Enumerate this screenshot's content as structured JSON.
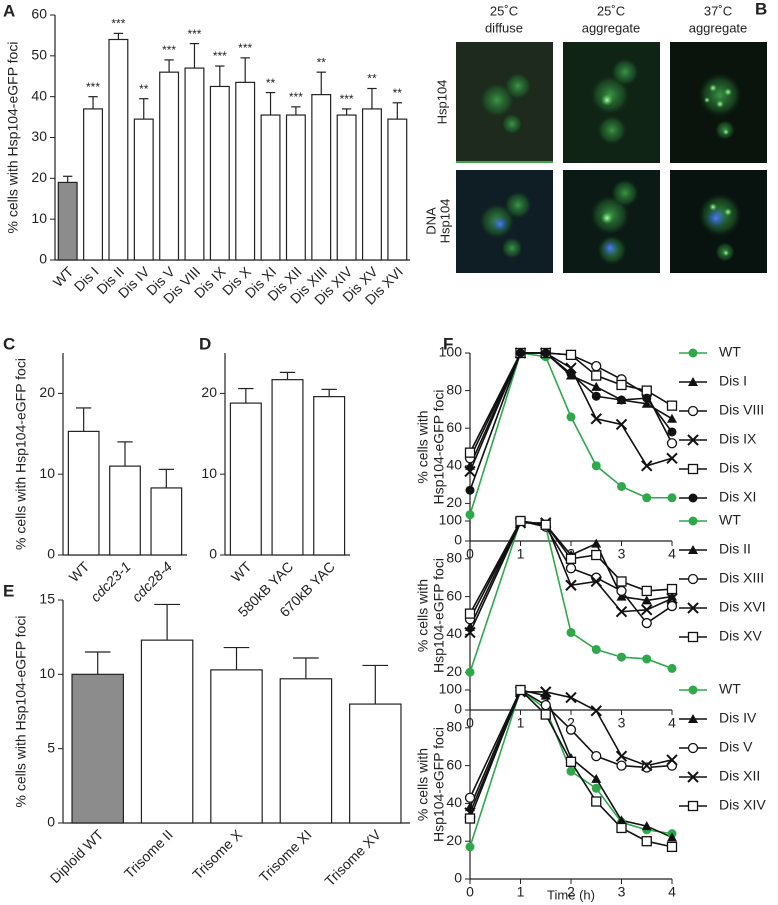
{
  "chart_data": [
    {
      "type": "bar",
      "label": "A",
      "ylabel": "% cells with Hsp104-eGFP foci",
      "categories": [
        "WT",
        "Dis I",
        "Dis II",
        "Dis IV",
        "Dis V",
        "Dis VIII",
        "Dis IX",
        "Dis X",
        "Dis XI",
        "Dis XII",
        "Dis XIII",
        "Dis XIV",
        "Dis XV",
        "Dis XVI"
      ],
      "values": [
        19,
        37,
        54,
        34.5,
        46,
        47,
        42.5,
        43.5,
        35.5,
        35.5,
        40.5,
        35.5,
        37,
        34.5
      ],
      "errors": [
        1.5,
        3,
        1.5,
        5,
        3,
        6,
        5,
        6,
        5.5,
        2,
        5.5,
        1.5,
        5,
        4
      ],
      "annotations": [
        null,
        "***",
        "***",
        "**",
        "***",
        "***",
        "***",
        "***",
        "**",
        "***",
        "**",
        "***",
        "**",
        "**"
      ],
      "colors": [
        "#8c8c8c",
        "#ffffff",
        "#ffffff",
        "#ffffff",
        "#ffffff",
        "#ffffff",
        "#ffffff",
        "#ffffff",
        "#ffffff",
        "#ffffff",
        "#ffffff",
        "#ffffff",
        "#ffffff",
        "#ffffff"
      ],
      "ylim": [
        0,
        60
      ],
      "yticks": [
        0,
        10,
        20,
        30,
        40,
        50,
        60
      ]
    },
    {
      "type": "bar",
      "label": "C",
      "ylabel": "% cells with Hsp104-eGFP foci",
      "categories": [
        "WT",
        "cdc23-1",
        "cdc28-4"
      ],
      "italic": [
        false,
        true,
        true
      ],
      "values": [
        15.3,
        11,
        8.3
      ],
      "errors": [
        2.9,
        3,
        2.3
      ],
      "colors": [
        "#ffffff",
        "#ffffff",
        "#ffffff"
      ],
      "ylim": [
        0,
        25
      ],
      "yticks": [
        0,
        10,
        20
      ]
    },
    {
      "type": "bar",
      "label": "D",
      "categories": [
        "WT",
        "580kB YAC",
        "670kB YAC"
      ],
      "values": [
        18.8,
        21.7,
        19.6
      ],
      "errors": [
        1.8,
        0.9,
        0.9
      ],
      "colors": [
        "#ffffff",
        "#ffffff",
        "#ffffff"
      ],
      "ylim": [
        0,
        25
      ],
      "yticks": [
        0,
        10,
        20
      ]
    },
    {
      "type": "bar",
      "label": "E",
      "ylabel": "% cells with Hsp104-eGFP foci",
      "categories": [
        "Diploid WT",
        "Trisome II",
        "Trisome X",
        "Trisome XI",
        "Trisome XV"
      ],
      "values": [
        10,
        12.3,
        10.3,
        9.7,
        8
      ],
      "errors": [
        1.5,
        2.4,
        1.5,
        1.4,
        2.6
      ],
      "colors": [
        "#8c8c8c",
        "#ffffff",
        "#ffffff",
        "#ffffff",
        "#ffffff"
      ],
      "ylim": [
        0,
        15
      ],
      "yticks": [
        0,
        5,
        10,
        15
      ]
    },
    {
      "type": "line",
      "label": "F",
      "ylabel": [
        "% cells with",
        "Hsp104-eGFP foci"
      ],
      "x": [
        0,
        1,
        1.5,
        2,
        2.5,
        3,
        3.5,
        4
      ],
      "xlim": [
        0,
        4
      ],
      "xticks": [
        0,
        1,
        2,
        3,
        4
      ],
      "ylim": [
        0,
        100
      ],
      "yticks": [
        0,
        20,
        40,
        60,
        80,
        100
      ],
      "series": [
        {
          "name": "WT",
          "color": "#2ea84a",
          "marker": "circle",
          "values": [
            14,
            100,
            98,
            66,
            40,
            29,
            23,
            23
          ]
        },
        {
          "name": "Dis I",
          "color": "#111111",
          "marker": "triangle",
          "values": [
            40,
            100,
            100,
            88,
            82,
            75,
            73,
            65
          ]
        },
        {
          "name": "Dis VIII",
          "color": "#111111",
          "marker": "circle-open",
          "values": [
            44,
            100,
            100,
            99,
            93,
            86,
            78,
            52
          ]
        },
        {
          "name": "Dis IX",
          "color": "#111111",
          "marker": "x",
          "values": [
            37,
            100,
            100,
            92,
            65,
            62,
            40,
            44
          ]
        },
        {
          "name": "Dis X",
          "color": "#111111",
          "marker": "square-open",
          "values": [
            47,
            100,
            100,
            99,
            88,
            83,
            80,
            72
          ]
        },
        {
          "name": "Dis XI",
          "color": "#111111",
          "marker": "circle",
          "values": [
            27,
            100,
            100,
            89,
            77,
            75,
            76,
            58
          ]
        }
      ]
    },
    {
      "type": "line",
      "ylabel": [
        "% cells with",
        "Hsp104-eGFP foci"
      ],
      "x": [
        0,
        1,
        1.5,
        2,
        2.5,
        3,
        3.5,
        4
      ],
      "xlim": [
        0,
        4
      ],
      "xticks": [
        0,
        1,
        2,
        3,
        4
      ],
      "ylim": [
        0,
        100
      ],
      "yticks": [
        0,
        20,
        40,
        60,
        80,
        100
      ],
      "series": [
        {
          "name": "WT",
          "color": "#2ea84a",
          "marker": "circle",
          "values": [
            20,
            100,
            97,
            41,
            32,
            28,
            27,
            22
          ]
        },
        {
          "name": "Dis II",
          "color": "#111111",
          "marker": "triangle",
          "values": [
            44,
            100,
            98,
            82,
            88,
            60,
            58,
            60
          ]
        },
        {
          "name": "Dis XIII",
          "color": "#111111",
          "marker": "circle-open",
          "values": [
            48,
            100,
            97,
            75,
            70,
            63,
            46,
            55
          ]
        },
        {
          "name": "Dis XVI",
          "color": "#111111",
          "marker": "x",
          "values": [
            41,
            99,
            99,
            66,
            68,
            52,
            53,
            59
          ]
        },
        {
          "name": "Dis XV",
          "color": "#111111",
          "marker": "square-open",
          "values": [
            51,
            100,
            98,
            80,
            82,
            68,
            63,
            64
          ]
        }
      ]
    },
    {
      "type": "line",
      "ylabel": [
        "% cells with",
        "Hsp104-eGFP foci"
      ],
      "xlabel": "Time (h)",
      "x": [
        0,
        1,
        1.5,
        2,
        2.5,
        3,
        3.5,
        4
      ],
      "xlim": [
        0,
        4
      ],
      "xticks": [
        0,
        1,
        2,
        3,
        4
      ],
      "ylim": [
        0,
        100
      ],
      "yticks": [
        0,
        20,
        40,
        60,
        80,
        100
      ],
      "series": [
        {
          "name": "WT",
          "color": "#2ea84a",
          "marker": "circle",
          "values": [
            17,
            100,
            90,
            57,
            48,
            30,
            26,
            24
          ]
        },
        {
          "name": "Dis IV",
          "color": "#111111",
          "marker": "triangle",
          "values": [
            38,
            100,
            97,
            64,
            53,
            31,
            28,
            22
          ]
        },
        {
          "name": "Dis V",
          "color": "#111111",
          "marker": "circle-open",
          "values": [
            43,
            100,
            92,
            79,
            65,
            60,
            59,
            60
          ]
        },
        {
          "name": "Dis XII",
          "color": "#111111",
          "marker": "x",
          "values": [
            35,
            99,
            99,
            96,
            89,
            65,
            60,
            63
          ]
        },
        {
          "name": "Dis XIV",
          "color": "#111111",
          "marker": "square-open",
          "values": [
            32,
            100,
            87,
            62,
            41,
            27,
            20,
            17
          ]
        }
      ]
    }
  ],
  "panel_b": {
    "label": "B",
    "columns": [
      [
        "25˚C",
        "diffuse"
      ],
      [
        "25˚C",
        "aggregate"
      ],
      [
        "37˚C",
        "aggregate"
      ]
    ],
    "rows": [
      [
        "Hsp104"
      ],
      [
        "DNA",
        "Hsp104"
      ]
    ]
  }
}
